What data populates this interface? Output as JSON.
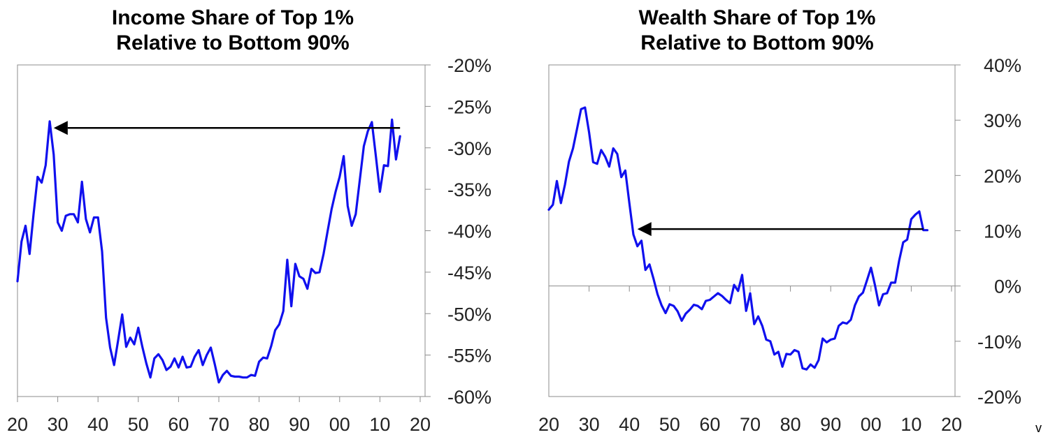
{
  "chart_data": [
    {
      "type": "line",
      "title_lines": [
        "Income Share of Top 1%",
        "Relative to Bottom 90%"
      ],
      "xlabel": "",
      "ylabel": "",
      "x_tick_labels": [
        "20",
        "30",
        "40",
        "50",
        "60",
        "70",
        "80",
        "90",
        "00",
        "10",
        "20"
      ],
      "x_tick_years": [
        1920,
        1930,
        1940,
        1950,
        1960,
        1970,
        1980,
        1990,
        2000,
        2010,
        2020
      ],
      "y_tick_labels": [
        "-20%",
        "-25%",
        "-30%",
        "-35%",
        "-40%",
        "-45%",
        "-50%",
        "-55%",
        "-60%"
      ],
      "y_tick_values": [
        -20,
        -25,
        -30,
        -35,
        -40,
        -45,
        -50,
        -55,
        -60
      ],
      "xlim": [
        1920,
        2022
      ],
      "ylim": [
        -60,
        -20
      ],
      "y_axis_side": "right",
      "grid": false,
      "line_color": "#1010ee",
      "series": [
        {
          "x": [
            1920,
            1921,
            1922,
            1923,
            1924,
            1925,
            1926,
            1927,
            1928,
            1929,
            1930,
            1931,
            1932,
            1933,
            1934,
            1935,
            1936,
            1937,
            1938,
            1939,
            1940,
            1941,
            1942,
            1943,
            1944,
            1945,
            1946,
            1947,
            1948,
            1949,
            1950,
            1951,
            1952,
            1953,
            1954,
            1955,
            1956,
            1957,
            1958,
            1959,
            1960,
            1961,
            1962,
            1963,
            1964,
            1965,
            1966,
            1967,
            1968,
            1969,
            1970,
            1971,
            1972,
            1973,
            1974,
            1975,
            1976,
            1977,
            1978,
            1979,
            1980,
            1981,
            1982,
            1983,
            1984,
            1985,
            1986,
            1987,
            1988,
            1989,
            1990,
            1991,
            1992,
            1993,
            1994,
            1995,
            1996,
            1997,
            1998,
            1999,
            2000,
            2001,
            2002,
            2003,
            2004,
            2005,
            2006,
            2007,
            2008,
            2009,
            2010,
            2011,
            2012,
            2013,
            2014,
            2015
          ],
          "y": [
            -46.1,
            -41.3,
            -39.4,
            -42.8,
            -38.0,
            -33.5,
            -34.2,
            -32.1,
            -26.8,
            -30.8,
            -39.0,
            -40.0,
            -38.2,
            -38.0,
            -38.0,
            -39.0,
            -34.1,
            -38.6,
            -40.2,
            -38.4,
            -38.4,
            -42.5,
            -50.5,
            -54.1,
            -56.2,
            -53.2,
            -50.1,
            -54.0,
            -52.9,
            -53.7,
            -51.7,
            -54.0,
            -56.0,
            -57.7,
            -55.4,
            -54.9,
            -55.6,
            -56.8,
            -56.4,
            -55.4,
            -56.5,
            -55.2,
            -56.5,
            -56.4,
            -55.2,
            -54.4,
            -56.2,
            -55.0,
            -54.1,
            -56.1,
            -58.3,
            -57.4,
            -56.9,
            -57.5,
            -57.6,
            -57.6,
            -57.7,
            -57.7,
            -57.4,
            -57.5,
            -55.8,
            -55.3,
            -55.4,
            -53.9,
            -52.0,
            -51.3,
            -49.7,
            -43.5,
            -49.1,
            -44.0,
            -45.5,
            -45.8,
            -47.0,
            -44.6,
            -45.1,
            -45.0,
            -42.8,
            -40.1,
            -37.4,
            -35.3,
            -33.5,
            -31.0,
            -37.0,
            -39.4,
            -38.0,
            -33.9,
            -29.8,
            -28.0,
            -26.9,
            -31.0,
            -35.3,
            -32.1,
            -32.2,
            -26.6,
            -31.4,
            -28.6
          ]
        }
      ],
      "annotations": [
        {
          "type": "arrow",
          "from": {
            "x": 2015,
            "y": -27.6
          },
          "to": {
            "x": 1929,
            "y": -27.6
          },
          "color": "#000000"
        }
      ]
    },
    {
      "type": "line",
      "title_lines": [
        "Wealth Share of Top 1%",
        "Relative to Bottom 90%"
      ],
      "xlabel": "",
      "ylabel": "",
      "x_tick_labels": [
        "20",
        "30",
        "40",
        "50",
        "60",
        "70",
        "80",
        "90",
        "00",
        "10",
        "20"
      ],
      "x_tick_years": [
        1920,
        1930,
        1940,
        1950,
        1960,
        1970,
        1980,
        1990,
        2000,
        2010,
        2020
      ],
      "y_tick_labels": [
        "40%",
        "30%",
        "20%",
        "10%",
        "0%",
        "-10%",
        "-20%"
      ],
      "y_tick_values": [
        40,
        30,
        20,
        10,
        0,
        -10,
        -20
      ],
      "xlim": [
        1920,
        2020
      ],
      "ylim": [
        -20,
        40
      ],
      "y_axis_side": "right",
      "grid": false,
      "zero_line": true,
      "line_color": "#1010ee",
      "series": [
        {
          "x": [
            1920,
            1921,
            1922,
            1923,
            1924,
            1925,
            1926,
            1927,
            1928,
            1929,
            1930,
            1931,
            1932,
            1933,
            1934,
            1935,
            1936,
            1937,
            1938,
            1939,
            1940,
            1941,
            1942,
            1943,
            1944,
            1945,
            1946,
            1947,
            1948,
            1949,
            1950,
            1951,
            1952,
            1953,
            1954,
            1955,
            1956,
            1957,
            1958,
            1959,
            1960,
            1961,
            1962,
            1963,
            1964,
            1965,
            1966,
            1967,
            1968,
            1969,
            1970,
            1971,
            1972,
            1973,
            1974,
            1975,
            1976,
            1977,
            1978,
            1979,
            1980,
            1981,
            1982,
            1983,
            1984,
            1985,
            1986,
            1987,
            1988,
            1989,
            1990,
            1991,
            1992,
            1993,
            1994,
            1995,
            1996,
            1997,
            1998,
            1999,
            2000,
            2001,
            2002,
            2003,
            2004,
            2005,
            2006,
            2007,
            2008,
            2009,
            2010,
            2011,
            2012,
            2013,
            2014
          ],
          "y": [
            13.8,
            14.7,
            19.0,
            15.0,
            18.3,
            22.5,
            24.9,
            28.4,
            32.0,
            32.3,
            27.8,
            22.4,
            22.1,
            24.6,
            23.4,
            21.6,
            24.9,
            23.9,
            19.7,
            20.9,
            15.0,
            9.3,
            7.2,
            8.2,
            2.9,
            3.9,
            1.3,
            -1.5,
            -3.5,
            -4.9,
            -3.3,
            -3.6,
            -4.6,
            -6.3,
            -5.0,
            -4.3,
            -3.4,
            -3.6,
            -4.2,
            -2.7,
            -2.5,
            -1.9,
            -1.3,
            -1.8,
            -2.5,
            -3.1,
            0.2,
            -0.9,
            2.0,
            -4.5,
            -1.3,
            -6.9,
            -5.5,
            -7.2,
            -9.7,
            -10.0,
            -12.4,
            -11.9,
            -14.6,
            -12.3,
            -12.4,
            -11.6,
            -11.9,
            -14.9,
            -15.1,
            -14.2,
            -14.8,
            -13.4,
            -9.5,
            -10.2,
            -9.7,
            -9.5,
            -7.2,
            -6.6,
            -6.8,
            -6.1,
            -3.5,
            -1.9,
            -1.2,
            1.0,
            3.3,
            0.1,
            -3.5,
            -1.5,
            -1.3,
            0.6,
            0.6,
            4.6,
            7.9,
            8.4,
            12.1,
            12.9,
            13.5,
            10.1,
            10.1
          ]
        }
      ],
      "annotations": [
        {
          "type": "arrow",
          "from": {
            "x": 2013,
            "y": 10.3
          },
          "to": {
            "x": 1942,
            "y": 10.3
          },
          "color": "#000000"
        }
      ]
    }
  ],
  "stray_text": "v"
}
